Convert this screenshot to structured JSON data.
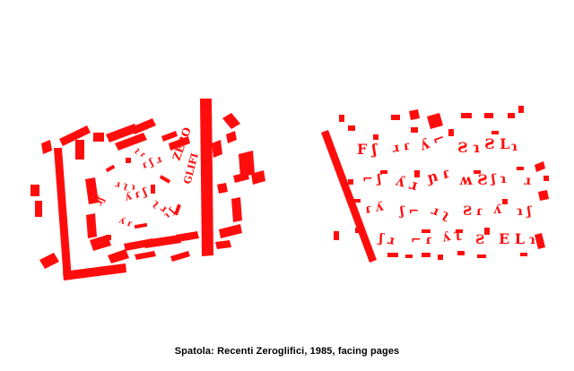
{
  "caption": "Spatola: Recenti Zeroglifici, 1985, facing pages",
  "colors": {
    "ink": "#ff0d0d",
    "paper": "#ffffff",
    "caption": "#000000"
  },
  "artworks": [
    {
      "name": "left-page-collage"
    },
    {
      "name": "right-page-collage"
    }
  ]
}
